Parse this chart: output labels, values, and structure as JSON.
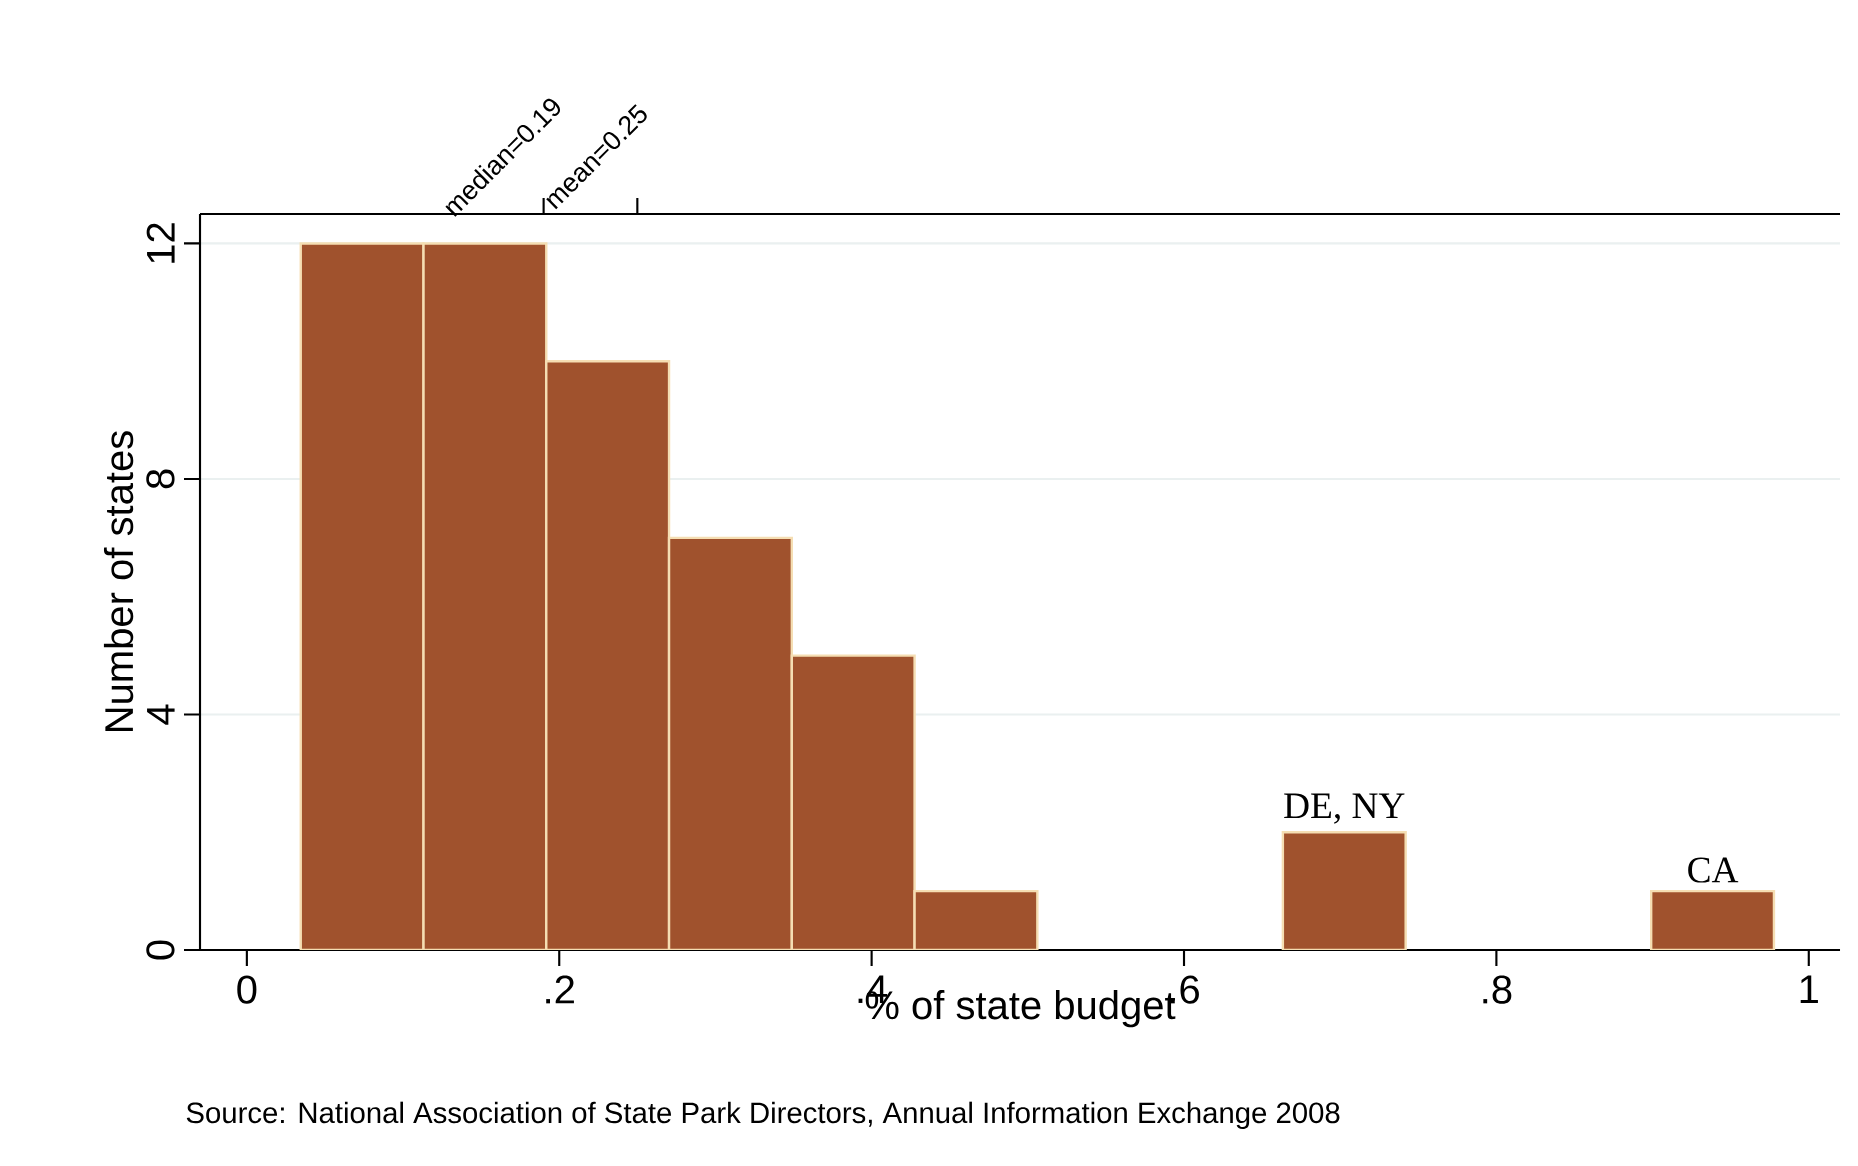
{
  "chart_data": {
    "type": "histogram",
    "xlabel": "% of state budget",
    "ylabel": "Number of states",
    "bins": [
      0.0345,
      0.1131,
      0.1917,
      0.2703,
      0.3489,
      0.4275,
      0.5061,
      0.5847,
      0.6633,
      0.7419,
      0.8205,
      0.8991,
      0.9777
    ],
    "values": [
      12,
      12,
      10,
      7,
      5,
      1,
      0,
      0,
      2,
      0,
      0,
      1
    ],
    "color": "#a0522d",
    "xlim": [
      -0.03,
      1.02
    ],
    "xticks": [
      0,
      {
        "value": 0.2,
        "label": ".2"
      },
      {
        "value": 0.4,
        "label": ".4"
      },
      {
        "value": 0.6,
        "label": ".6"
      },
      {
        "value": 0.8,
        "label": ".8"
      },
      1
    ],
    "x2lim": [
      -0.03,
      1.02
    ],
    "x2ticks": [
      {
        "value": 0.19,
        "label": "median=0.19"
      },
      {
        "value": 0.25,
        "label": "mean=0.25"
      }
    ],
    "ylim": [
      0,
      12.5
    ],
    "yticks": [
      0,
      4,
      8,
      12
    ],
    "grid": "y",
    "annotations": [
      {
        "text": "DE, NY",
        "x": 0.7026,
        "y": 2
      },
      {
        "text": "CA",
        "x": 0.9384,
        "y": 1
      },
      "Source: National Association of State Park Directors, Annual Information Exchange 2008"
    ]
  }
}
